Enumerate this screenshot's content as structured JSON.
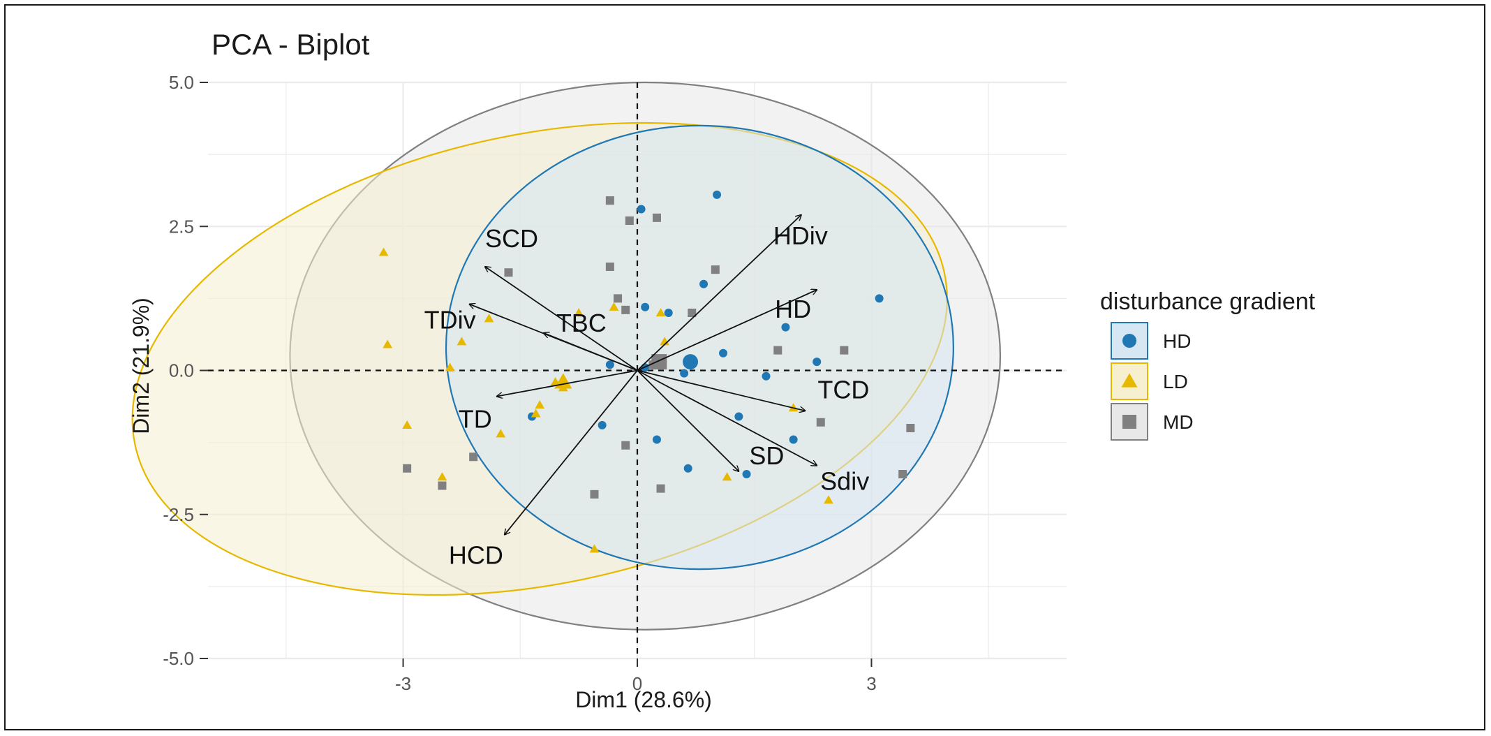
{
  "chart_data": {
    "type": "scatter",
    "title": "PCA - Biplot",
    "xlabel": "Dim1 (28.6%)",
    "ylabel": "Dim2 (21.9%)",
    "xlim": [
      -5.5,
      5.5
    ],
    "ylim": [
      -5.0,
      5.0
    ],
    "x_ticks": [
      -3,
      0,
      3
    ],
    "x_tick_labels": [
      "-3",
      "0",
      "3"
    ],
    "y_ticks": [
      -5,
      -2.5,
      0,
      2.5,
      5
    ],
    "y_tick_labels": [
      "-5.0",
      "-2.5",
      "0.0",
      "2.5",
      "5.0"
    ],
    "grid": true,
    "legend": {
      "title": "disturbance gradient",
      "placement": "right",
      "entries": [
        {
          "label": "HD",
          "shape": "circle",
          "color": "#1f77b4"
        },
        {
          "label": "LD",
          "shape": "triangle",
          "color": "#e7b800"
        },
        {
          "label": "MD",
          "shape": "square",
          "color": "#808080"
        }
      ]
    },
    "series": [
      {
        "group": "HD",
        "shape": "circle",
        "color": "#1f77b4",
        "fill": "#d6e6f2",
        "ellipse": {
          "cx": 0.8,
          "cy": 0.4,
          "rx": 3.25,
          "ry": 3.85,
          "angle": 0
        },
        "centroid": [
          0.68,
          0.15
        ],
        "points": [
          [
            1.02,
            3.05
          ],
          [
            3.1,
            1.25
          ],
          [
            0.05,
            2.8
          ],
          [
            0.1,
            1.1
          ],
          [
            0.4,
            1.0
          ],
          [
            0.85,
            1.5
          ],
          [
            1.9,
            0.75
          ],
          [
            1.1,
            0.3
          ],
          [
            2.3,
            0.15
          ],
          [
            0.6,
            -0.05
          ],
          [
            1.65,
            -0.1
          ],
          [
            1.3,
            -0.8
          ],
          [
            0.25,
            -1.2
          ],
          [
            -0.45,
            -0.95
          ],
          [
            2.0,
            -1.2
          ],
          [
            0.65,
            -1.7
          ],
          [
            1.4,
            -1.8
          ],
          [
            -1.35,
            -0.8
          ],
          [
            0.1,
            0.05
          ],
          [
            -0.35,
            0.1
          ]
        ]
      },
      {
        "group": "LD",
        "shape": "triangle",
        "color": "#e7b800",
        "fill": "#f6efd0",
        "ellipse": {
          "cx": -1.25,
          "cy": 0.2,
          "rx": 5.3,
          "ry": 3.9,
          "angle": -12
        },
        "centroid": [
          -0.95,
          -0.2
        ],
        "points": [
          [
            -3.25,
            2.05
          ],
          [
            -3.2,
            0.45
          ],
          [
            -2.95,
            -0.95
          ],
          [
            -2.5,
            -1.85
          ],
          [
            -2.4,
            0.05
          ],
          [
            -2.25,
            0.5
          ],
          [
            -1.9,
            0.9
          ],
          [
            -1.75,
            -1.1
          ],
          [
            -1.3,
            -0.75
          ],
          [
            -1.25,
            -0.6
          ],
          [
            -1.05,
            -0.2
          ],
          [
            -0.75,
            1.0
          ],
          [
            -0.3,
            1.1
          ],
          [
            0.3,
            1.0
          ],
          [
            0.35,
            0.5
          ],
          [
            1.15,
            -1.85
          ],
          [
            2.0,
            -0.65
          ],
          [
            2.45,
            -2.25
          ],
          [
            -0.55,
            -3.1
          ],
          [
            -0.95,
            -0.3
          ]
        ]
      },
      {
        "group": "MD",
        "shape": "square",
        "color": "#808080",
        "fill": "#e8e8e8",
        "ellipse": {
          "cx": 0.1,
          "cy": 0.25,
          "rx": 4.55,
          "ry": 4.75,
          "angle": 0
        },
        "centroid": [
          0.28,
          0.15
        ],
        "points": [
          [
            -0.35,
            2.95
          ],
          [
            -0.1,
            2.6
          ],
          [
            0.25,
            2.65
          ],
          [
            1.0,
            1.75
          ],
          [
            -1.65,
            1.7
          ],
          [
            -0.35,
            1.8
          ],
          [
            -0.25,
            1.25
          ],
          [
            -0.15,
            1.05
          ],
          [
            0.7,
            1.0
          ],
          [
            1.8,
            0.35
          ],
          [
            2.65,
            0.35
          ],
          [
            3.5,
            -1.0
          ],
          [
            3.4,
            -1.8
          ],
          [
            2.35,
            -0.9
          ],
          [
            0.3,
            -2.05
          ],
          [
            -0.55,
            -2.15
          ],
          [
            -0.15,
            -1.3
          ],
          [
            -2.1,
            -1.5
          ],
          [
            -2.5,
            -2.0
          ],
          [
            -2.95,
            -1.7
          ],
          [
            0.2,
            0.1
          ],
          [
            0.3,
            0.15
          ]
        ]
      }
    ],
    "variables": [
      {
        "name": "SCD",
        "x": -1.95,
        "y": 1.8
      },
      {
        "name": "TDiv",
        "x": -2.15,
        "y": 1.15
      },
      {
        "name": "TBC",
        "x": -1.2,
        "y": 0.65
      },
      {
        "name": "TD",
        "x": -1.8,
        "y": -0.45
      },
      {
        "name": "HCD",
        "x": -1.7,
        "y": -2.85
      },
      {
        "name": "HDiv",
        "x": 2.1,
        "y": 2.7
      },
      {
        "name": "HD",
        "x": 2.3,
        "y": 1.4
      },
      {
        "name": "TCD",
        "x": 2.15,
        "y": -0.7
      },
      {
        "name": "SD",
        "x": 1.3,
        "y": -1.75
      },
      {
        "name": "Sdiv",
        "x": 2.3,
        "y": -1.65
      }
    ]
  }
}
